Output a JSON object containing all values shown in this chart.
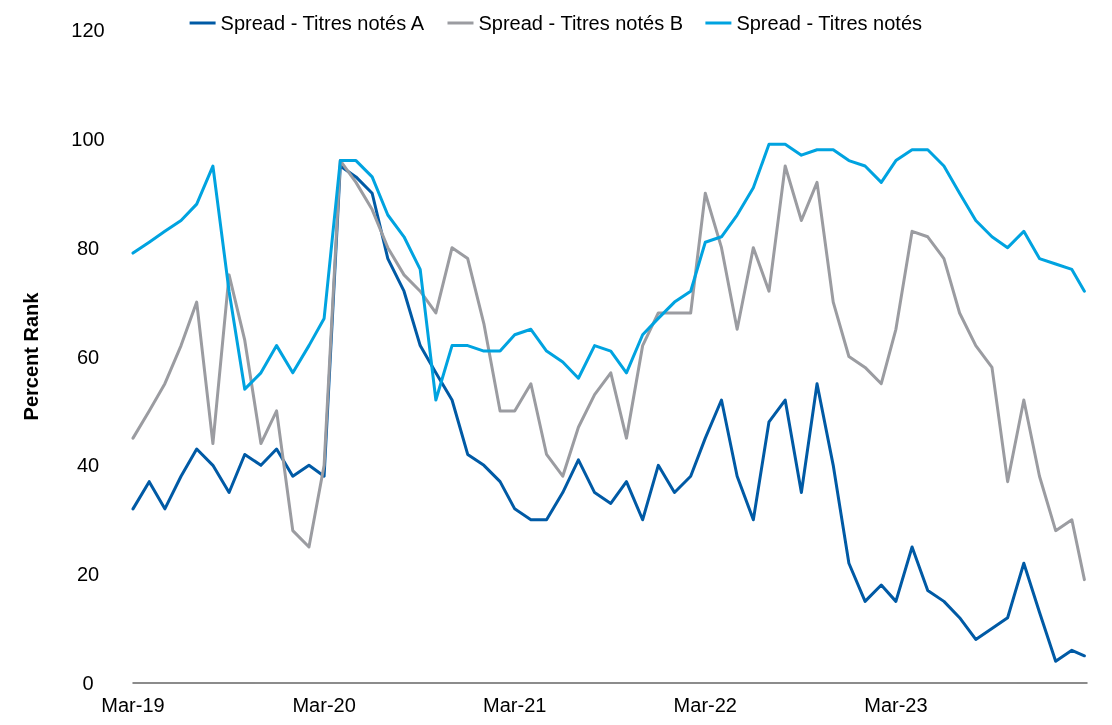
{
  "chart_data": {
    "type": "line",
    "ylabel": "Percent Rank",
    "x": [
      "2019-03-01",
      "2019-04-01",
      "2019-05-01",
      "2019-06-01",
      "2019-07-01",
      "2019-08-01",
      "2019-09-01",
      "2019-10-01",
      "2019-11-01",
      "2019-12-01",
      "2020-01-01",
      "2020-02-01",
      "2020-03-01",
      "2020-04-01",
      "2020-05-01",
      "2020-06-01",
      "2020-07-01",
      "2020-08-01",
      "2020-09-01",
      "2020-10-01",
      "2020-11-01",
      "2020-12-01",
      "2021-01-01",
      "2021-02-01",
      "2021-03-01",
      "2021-04-01",
      "2021-05-01",
      "2021-06-01",
      "2021-07-01",
      "2021-08-01",
      "2021-09-01",
      "2021-10-01",
      "2021-11-01",
      "2021-12-01",
      "2022-01-01",
      "2022-02-01",
      "2022-03-01",
      "2022-04-01",
      "2022-05-01",
      "2022-06-01",
      "2022-07-01",
      "2022-08-01",
      "2022-09-01",
      "2022-10-01",
      "2022-11-01",
      "2022-12-01",
      "2023-01-01",
      "2023-02-01",
      "2023-03-01",
      "2023-04-01",
      "2023-05-01",
      "2023-06-01",
      "2023-07-01",
      "2023-08-01",
      "2023-09-01",
      "2023-10-01",
      "2023-11-01",
      "2023-12-01",
      "2024-01-01",
      "2024-02-01",
      "2024-02-25"
    ],
    "series": [
      {
        "name": "Spread - Titres notés A",
        "color": "#005aa5",
        "values": [
          32,
          37,
          32,
          38,
          43,
          40,
          35,
          42,
          40,
          43,
          38,
          40,
          38,
          95,
          93,
          90,
          78,
          72,
          62,
          57,
          52,
          42,
          40,
          37,
          32,
          30,
          30,
          35,
          41,
          35,
          33,
          37,
          30,
          40,
          35,
          38,
          45,
          52,
          38,
          30,
          48,
          52,
          35,
          55,
          40,
          22,
          15,
          18,
          15,
          25,
          17,
          15,
          12,
          8,
          10,
          12,
          22,
          13,
          4,
          6,
          5
        ]
      },
      {
        "name": "Spread - Titres notés B",
        "color": "#9b9ca1",
        "values": [
          45,
          50,
          55,
          62,
          70,
          44,
          75,
          63,
          44,
          50,
          28,
          25,
          40,
          96,
          92,
          87,
          80,
          75,
          72,
          68,
          80,
          78,
          66,
          50,
          50,
          55,
          42,
          38,
          47,
          53,
          57,
          45,
          62,
          68,
          68,
          68,
          90,
          80,
          65,
          80,
          72,
          95,
          85,
          92,
          70,
          60,
          58,
          55,
          65,
          83,
          82,
          78,
          68,
          62,
          58,
          37,
          52,
          38,
          28,
          30,
          19
        ]
      },
      {
        "name": "Spread - Titres notés",
        "color": "#00a3e0",
        "values": [
          79,
          81,
          83,
          85,
          88,
          95,
          72,
          54,
          57,
          62,
          57,
          62,
          67,
          96,
          96,
          93,
          86,
          82,
          76,
          52,
          62,
          62,
          61,
          61,
          64,
          65,
          61,
          59,
          56,
          62,
          61,
          57,
          64,
          67,
          70,
          72,
          81,
          82,
          86,
          91,
          99,
          99,
          97,
          98,
          98,
          96,
          95,
          92,
          96,
          98,
          98,
          95,
          90,
          85,
          82,
          80,
          83,
          78,
          77,
          76,
          72
        ]
      }
    ],
    "xlim": [
      "2019-03-01",
      "2024-03-01"
    ],
    "xticks": [
      {
        "value": "2019-03-01",
        "label": "Mar-19"
      },
      {
        "value": "2020-03-01",
        "label": "Mar-20"
      },
      {
        "value": "2021-03-01",
        "label": "Mar-21"
      },
      {
        "value": "2022-03-01",
        "label": "Mar-22"
      },
      {
        "value": "2023-03-01",
        "label": "Mar-23"
      }
    ],
    "ylim": [
      0,
      120
    ],
    "yticks": [
      0,
      20,
      40,
      60,
      80,
      100,
      120
    ],
    "grid": false,
    "legend": "top",
    "marker": "none",
    "line_style": "solid"
  }
}
